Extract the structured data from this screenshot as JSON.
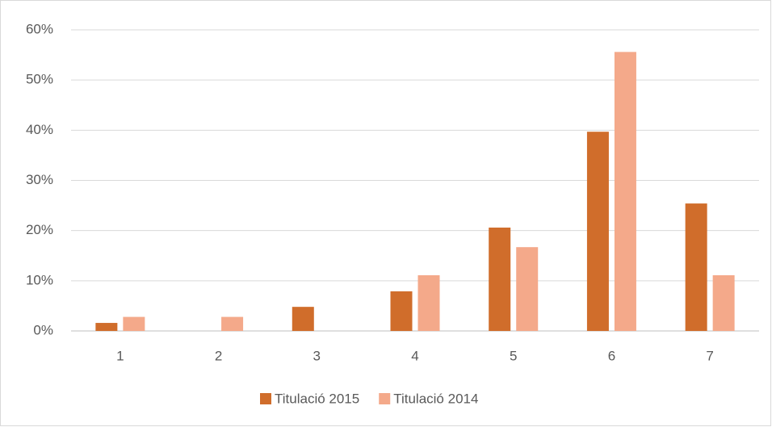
{
  "chart_data": {
    "type": "bar",
    "categories": [
      "1",
      "2",
      "3",
      "4",
      "5",
      "6",
      "7"
    ],
    "series": [
      {
        "name": "Titulació 2015",
        "color": "#d06d2b",
        "values": [
          1.6,
          0,
          4.8,
          7.9,
          20.6,
          39.7,
          25.4
        ]
      },
      {
        "name": "Titulació 2014",
        "color": "#f4a98a",
        "values": [
          2.8,
          2.8,
          0,
          11.1,
          16.7,
          55.6,
          11.1
        ]
      }
    ],
    "ylim": [
      0,
      60
    ],
    "yticks": [
      {
        "value": 0,
        "label": "0%"
      },
      {
        "value": 10,
        "label": "10%"
      },
      {
        "value": 20,
        "label": "20%"
      },
      {
        "value": 30,
        "label": "30%"
      },
      {
        "value": 40,
        "label": "40%"
      },
      {
        "value": 50,
        "label": "50%"
      },
      {
        "value": 60,
        "label": "60%"
      }
    ],
    "grid": true,
    "legend": "bottom"
  }
}
